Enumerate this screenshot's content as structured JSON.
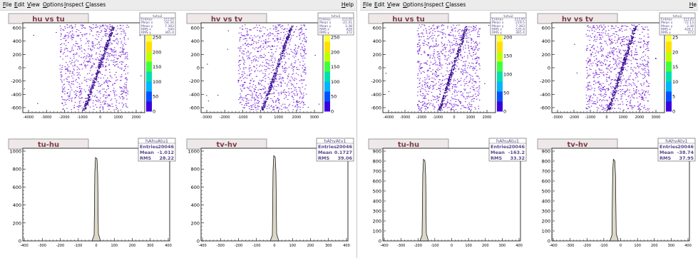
{
  "windows": [
    {
      "menu": [
        "File",
        "Edit",
        "View",
        "Options",
        "Inspect",
        "Classes"
      ],
      "help": "Help",
      "pads": [
        {
          "kind": "scatter",
          "title": "hu vs tu",
          "stats": {
            "name": "tuhu2",
            "rows": [
              [
                "Entries",
                "21120"
              ],
              [
                "Mean x",
                "-54.34"
              ],
              [
                "Mean y",
                "7.383"
              ],
              [
                "RMS x",
                "540"
              ],
              [
                "RMS y",
                "365.4"
              ]
            ]
          },
          "yticks": [
            "600",
            "400",
            "200",
            "0",
            "-200",
            "-400",
            "-600"
          ],
          "xticks": [
            "-4000",
            "-3000",
            "-2000",
            "-1000",
            "0",
            "1000",
            "2000"
          ],
          "zticks": [
            "250",
            "200",
            "150",
            "100",
            "50",
            "0"
          ]
        },
        {
          "kind": "scatter",
          "title": "hv vs tv",
          "stats": {
            "name": "tvhv2",
            "rows": [
              [
                "Entries",
                "21120"
              ],
              [
                "Mean x",
                "-21.41"
              ],
              [
                "Mean y",
                "3.38"
              ],
              [
                "RMS x",
                "428"
              ],
              [
                "RMS y",
                "372"
              ]
            ]
          },
          "yticks": [
            "600",
            "400",
            "200",
            "0",
            "-200",
            "-400",
            "-600"
          ],
          "xticks": [
            "-3000",
            "-2000",
            "-1000",
            "0",
            "1000",
            "2000",
            "3000"
          ],
          "zticks": [
            "250",
            "200",
            "150",
            "100",
            "50",
            "0"
          ]
        },
        {
          "kind": "hist",
          "title": "tu-hu",
          "stats": {
            "name": "hAhuAtu1",
            "rows": [
              [
                "Entries",
                "20046"
              ],
              [
                "Mean",
                "-1.012"
              ],
              [
                "RMS",
                "28.22"
              ]
            ]
          },
          "yticks": [
            "1000",
            "800",
            "600",
            "400",
            "200",
            "0"
          ],
          "xticks": [
            "-400",
            "-300",
            "-200",
            "-100",
            "0",
            "100",
            "200",
            "300",
            "400"
          ],
          "peak": 0,
          "peakFrac": 0.9
        },
        {
          "kind": "hist",
          "title": "tv-hv",
          "stats": {
            "name": "hAhvAtv1",
            "rows": [
              [
                "Entries",
                "20046"
              ],
              [
                "Mean",
                "0.1727"
              ],
              [
                "RMS",
                "39.06"
              ]
            ]
          },
          "yticks": [
            "1000",
            "800",
            "600",
            "400",
            "200",
            "0"
          ],
          "xticks": [
            "-400",
            "-300",
            "-200",
            "-100",
            "0",
            "100",
            "200",
            "300",
            "400"
          ],
          "peak": 0,
          "peakFrac": 0.92
        }
      ]
    },
    {
      "menu": [
        "File",
        "Edit",
        "View",
        "Options",
        "Inspect",
        "Classes"
      ],
      "help": "He",
      "pads": [
        {
          "kind": "scatter",
          "title": "hu vs tu",
          "stats": {
            "name": "tuhu2",
            "rows": [
              [
                "Entries",
                "21120"
              ],
              [
                "Mean x",
                "-219.5"
              ],
              [
                "Mean y",
                "7.383"
              ],
              [
                "RMS x",
                "535.8"
              ],
              [
                "RMS y",
                "365.4"
              ]
            ]
          },
          "yticks": [
            "600",
            "400",
            "200",
            "0",
            "-200",
            "-400",
            "-600"
          ],
          "xticks": [
            "-4000",
            "-3000",
            "-2000",
            "-1000",
            "0",
            "1000",
            "2000"
          ],
          "zticks": [
            "200",
            "150",
            "100",
            "50",
            "0"
          ]
        },
        {
          "kind": "scatter",
          "title": "hv vs tv",
          "stats": {
            "name": "tvhv2",
            "rows": [
              [
                "Entries",
                "21120"
              ],
              [
                "Mean x",
                "-72.13"
              ],
              [
                "Mean y",
                "3.38"
              ],
              [
                "RMS x",
                "428.1"
              ],
              [
                "RMS y",
                "372"
              ]
            ]
          },
          "yticks": [
            "600",
            "400",
            "200",
            "0",
            "-200",
            "-400",
            "-600"
          ],
          "xticks": [
            "-3000",
            "-2000",
            "-1000",
            "0",
            "1000",
            "2000",
            "3000"
          ],
          "zticks": [
            "25",
            "20",
            "15",
            "10",
            "5",
            "0"
          ]
        },
        {
          "kind": "hist",
          "title": "tu-hu",
          "stats": {
            "name": "hAhuAtu1",
            "rows": [
              [
                "Entries",
                "20046"
              ],
              [
                "Mean",
                "-163.2"
              ],
              [
                "RMS",
                "33.32"
              ]
            ]
          },
          "yticks": [
            "900",
            "800",
            "700",
            "600",
            "500",
            "400",
            "300",
            "200",
            "100",
            "0"
          ],
          "xticks": [
            "-400",
            "-300",
            "-200",
            "-100",
            "0",
            "100",
            "200",
            "300",
            "400"
          ],
          "peak": -163,
          "peakFrac": 0.88
        },
        {
          "kind": "hist",
          "title": "tv-hv",
          "stats": {
            "name": "hAhvAtv1",
            "rows": [
              [
                "Entries",
                "20046"
              ],
              [
                "Mean",
                "-38.74"
              ],
              [
                "RMS",
                "37.95"
              ]
            ]
          },
          "yticks": [
            "900",
            "800",
            "700",
            "600",
            "500",
            "400",
            "300",
            "200",
            "100",
            "0"
          ],
          "xticks": [
            "-400",
            "-300",
            "-200",
            "-100",
            "0",
            "100",
            "200",
            "300",
            "400"
          ],
          "peak": -39,
          "peakFrac": 0.88
        }
      ]
    }
  ],
  "colors": {
    "scatter": "#7a28d8",
    "band": "#3a1090",
    "hist_fill": "#dcd8c8",
    "stats_text": "#5a4a8a",
    "title_text": "#7a3a4a"
  }
}
